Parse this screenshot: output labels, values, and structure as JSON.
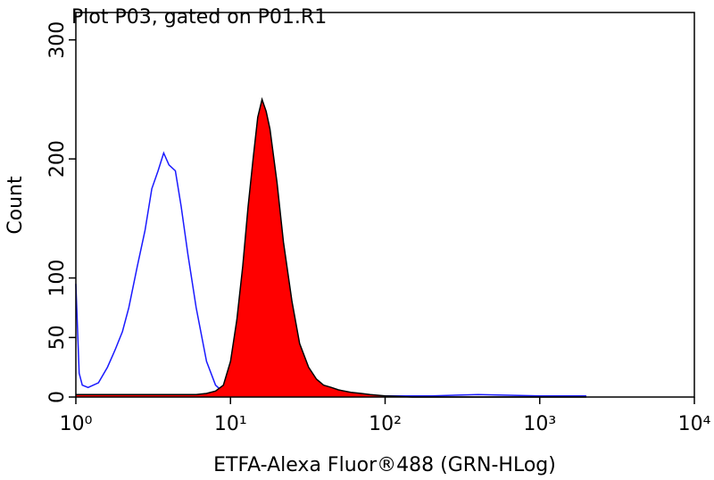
{
  "chart_data": {
    "type": "line",
    "title": "Plot P03, gated on P01.R1",
    "x_label": "ETFA-Alexa Fluor®488 (GRN-HLog)",
    "y_label": "Count",
    "x_log": true,
    "xlim": [
      1,
      10000
    ],
    "xticks": [
      {
        "value": 1,
        "label": "10⁰"
      },
      {
        "value": 10,
        "label": "10¹"
      },
      {
        "value": 100,
        "label": "10²"
      },
      {
        "value": 1000,
        "label": "10³"
      },
      {
        "value": 10000,
        "label": "10⁴"
      }
    ],
    "ylim": [
      0,
      323
    ],
    "yticks": [
      0,
      50,
      100,
      200,
      300
    ],
    "x": [
      1,
      1.05,
      1.1,
      1.2,
      1.4,
      1.6,
      1.8,
      2.0,
      2.2,
      2.5,
      2.8,
      3.1,
      3.4,
      3.7,
      4.0,
      4.4,
      4.8,
      5.3,
      6,
      7,
      8,
      9,
      10,
      11,
      12,
      13,
      14,
      15,
      16,
      17,
      18,
      20,
      22,
      25,
      28,
      32,
      36,
      40,
      45,
      50,
      60,
      70,
      80,
      100,
      150,
      200,
      400,
      1000,
      2000
    ],
    "series": [
      {
        "color": "#1a1aff",
        "filled": false,
        "values": [
          95,
          20,
          10,
          8,
          12,
          25,
          40,
          55,
          75,
          110,
          140,
          175,
          190,
          205,
          195,
          190,
          160,
          120,
          75,
          30,
          10,
          4,
          2,
          1,
          1,
          1,
          1,
          1,
          1,
          1,
          1,
          1,
          1,
          1,
          1,
          1,
          1,
          1,
          1,
          1,
          1,
          1,
          1,
          1,
          1,
          1,
          2,
          1,
          1
        ]
      },
      {
        "color": "#ff0000",
        "outline": "#000000",
        "filled": true,
        "values": [
          2,
          2,
          2,
          2,
          2,
          2,
          2,
          2,
          2,
          2,
          2,
          2,
          2,
          2,
          2,
          2,
          2,
          2,
          2,
          3,
          5,
          10,
          30,
          65,
          110,
          160,
          200,
          235,
          250,
          240,
          225,
          180,
          130,
          80,
          45,
          25,
          15,
          10,
          8,
          6,
          4,
          3,
          2,
          1,
          0,
          0,
          0,
          0,
          0
        ]
      }
    ]
  }
}
